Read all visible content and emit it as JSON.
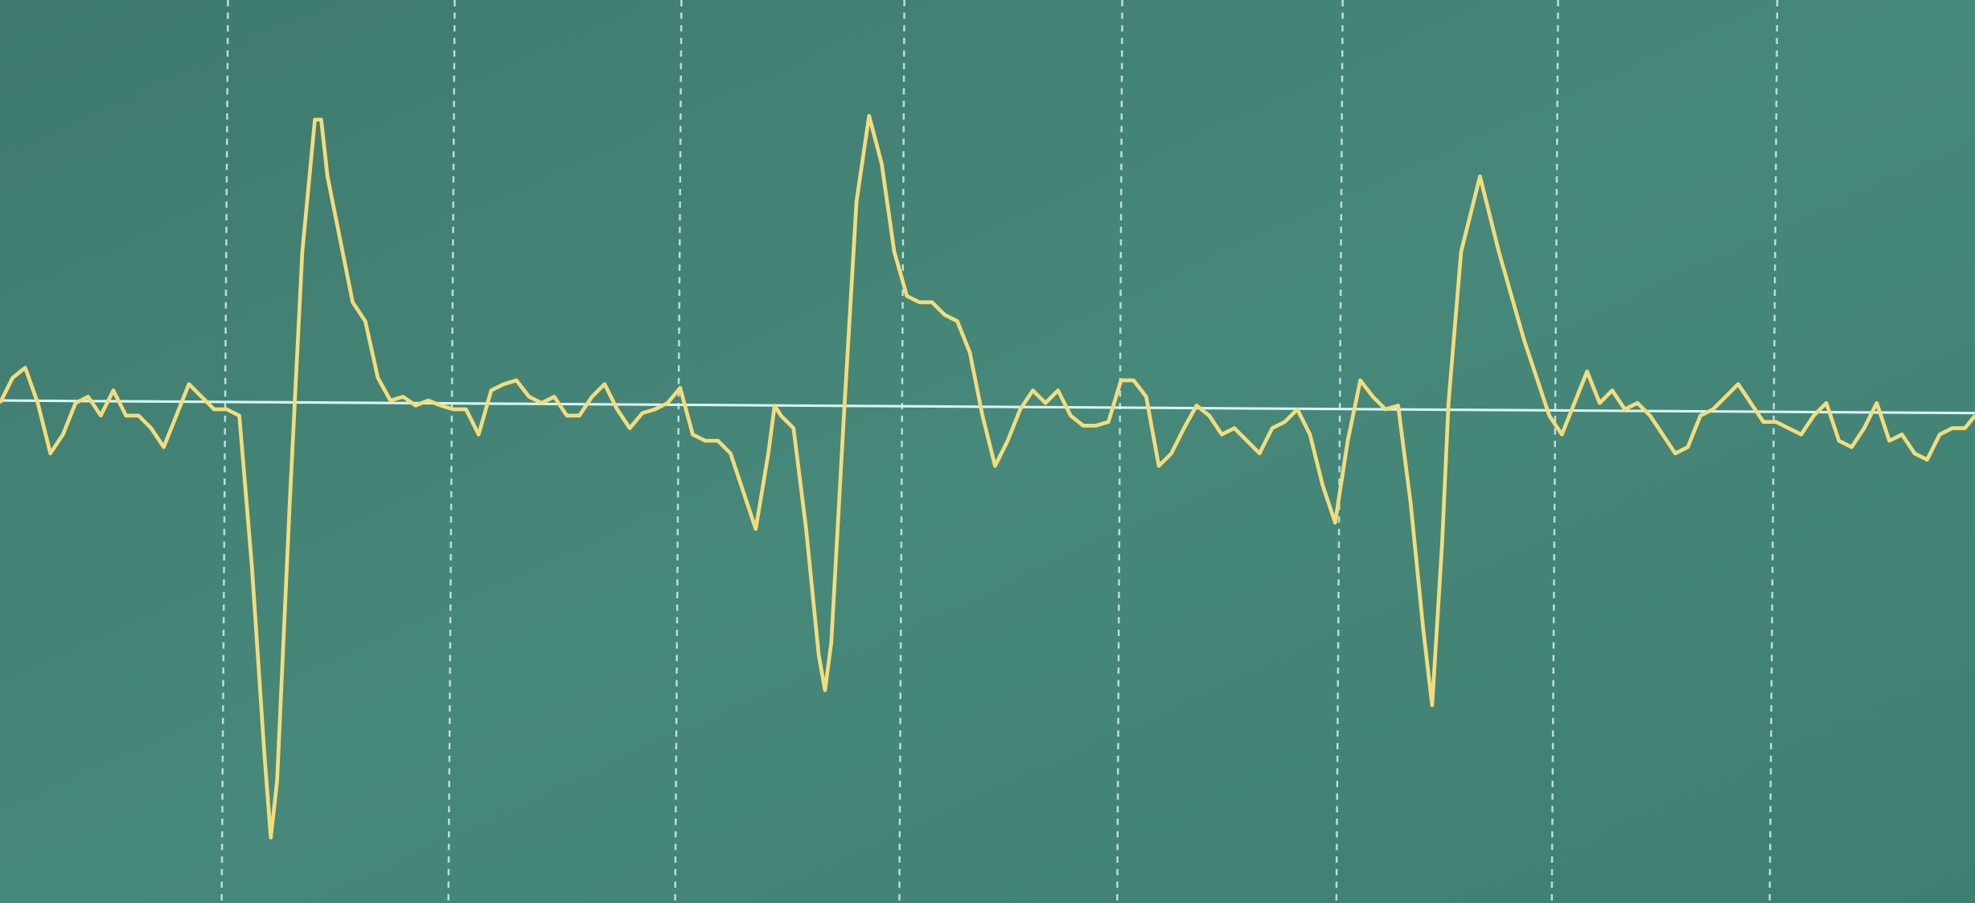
{
  "chart_data": {
    "type": "line",
    "x": [
      0,
      10,
      20,
      30,
      40,
      50,
      60,
      70,
      80,
      90,
      100,
      110,
      120,
      130,
      140,
      150,
      160,
      170,
      180,
      190,
      200,
      210,
      215,
      220,
      230,
      240,
      250,
      255,
      260,
      270,
      280,
      290,
      300,
      310,
      320,
      330,
      340,
      350,
      360,
      370,
      380,
      390,
      400,
      410,
      420,
      430,
      440,
      450,
      460,
      470,
      480,
      490,
      500,
      510,
      520,
      530,
      540,
      550,
      560,
      570,
      580,
      590,
      600,
      610,
      615,
      620,
      630,
      640,
      650,
      655,
      660,
      670,
      680,
      690,
      700,
      710,
      720,
      730,
      740,
      750,
      760,
      770,
      780,
      790,
      800,
      810,
      820,
      830,
      840,
      850,
      860,
      870,
      880,
      890,
      900,
      910,
      920,
      930,
      940,
      950,
      960,
      970,
      980,
      990,
      1000,
      1010,
      1020,
      1030,
      1040,
      1050,
      1060,
      1070,
      1080,
      1090,
      1100,
      1110,
      1120,
      1130,
      1137,
      1145,
      1150,
      1160,
      1175,
      1190,
      1200,
      1210,
      1220,
      1230,
      1240,
      1250,
      1260,
      1270,
      1280,
      1290,
      1300,
      1310,
      1320,
      1330,
      1340,
      1350,
      1360,
      1370,
      1380,
      1390,
      1400,
      1410,
      1420,
      1430,
      1440,
      1450,
      1460,
      1470,
      1480,
      1490,
      1500,
      1510,
      1520,
      1530,
      1540,
      1550,
      1560,
      1568
    ],
    "values": [
      0,
      20,
      28,
      0,
      -40,
      -25,
      0,
      5,
      -10,
      10,
      -10,
      -10,
      -20,
      -35,
      -10,
      15,
      5,
      -5,
      -5,
      -10,
      -130,
      -280,
      -345,
      -300,
      -80,
      120,
      225,
      225,
      180,
      130,
      80,
      65,
      20,
      2,
      5,
      -2,
      2,
      -2,
      -5,
      -5,
      -25,
      10,
      15,
      18,
      5,
      0,
      5,
      -10,
      -10,
      5,
      15,
      -5,
      -20,
      -8,
      -5,
      0,
      12,
      -25,
      -30,
      -30,
      -40,
      -70,
      -100,
      -40,
      -2,
      -10,
      -20,
      -100,
      -200,
      -228,
      -190,
      -10,
      160,
      228,
      190,
      120,
      85,
      80,
      80,
      70,
      65,
      40,
      -10,
      -50,
      -30,
      -5,
      10,
      0,
      10,
      -10,
      -18,
      -18,
      -15,
      18,
      18,
      5,
      -50,
      -40,
      -20,
      -2,
      -10,
      -25,
      -20,
      -30,
      -40,
      -20,
      -15,
      -5,
      -25,
      -65,
      -95,
      -30,
      18,
      5,
      -5,
      -2,
      -80,
      -180,
      -240,
      -110,
      0,
      120,
      180,
      120,
      85,
      50,
      20,
      -10,
      -25,
      0,
      25,
      0,
      10,
      -5,
      0,
      -10,
      -25,
      -40,
      -35,
      -10,
      -5,
      5,
      15,
      0,
      -15,
      -15,
      -20,
      -25,
      -10,
      0,
      -30,
      -35,
      -20,
      0,
      -30,
      -25,
      -40,
      -45,
      -25,
      -20,
      -20,
      -10
    ],
    "color": "#f4dc7c",
    "xlim": [
      0,
      1568
    ],
    "ylim": [
      -397,
      320
    ]
  }
}
